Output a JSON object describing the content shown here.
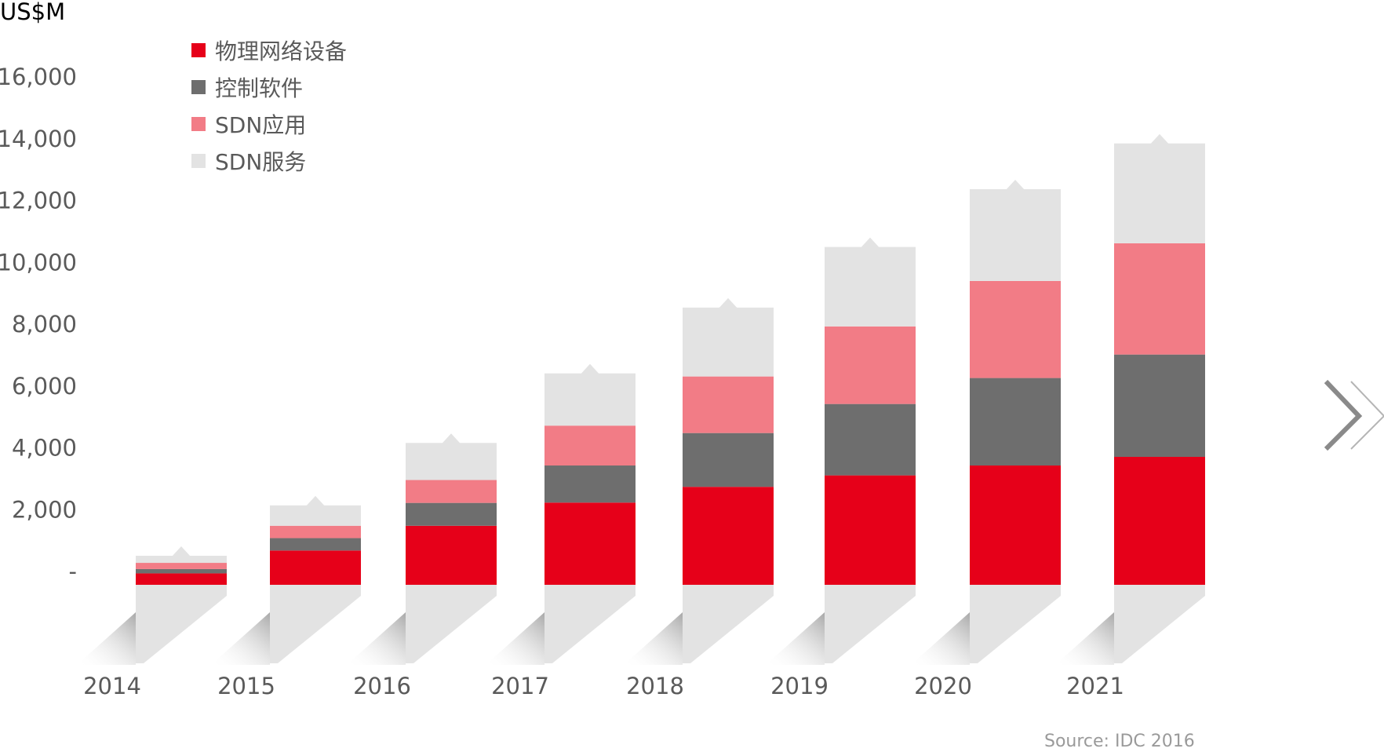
{
  "chart_data": {
    "type": "bar",
    "stacked": true,
    "ylabel": "US$M",
    "ylim": [
      0,
      16000
    ],
    "y_ticks": [
      "-",
      "2,000",
      "4,000",
      "6,000",
      "8,000",
      "10,000",
      "12,000",
      "14,000",
      "16,000"
    ],
    "y_tick_values": [
      0,
      2000,
      4000,
      6000,
      8000,
      10000,
      12000,
      14000,
      16000
    ],
    "grid": false,
    "legend_position": "top-left",
    "categories": [
      "2014",
      "2015",
      "2016",
      "2017",
      "2018",
      "2019",
      "2020",
      "2021"
    ],
    "series": [
      {
        "name": "物理网络设备",
        "color": "#e60019",
        "values": [
          370,
          1110,
          1910,
          2660,
          3170,
          3540,
          3860,
          4140
        ]
      },
      {
        "name": "控制软件",
        "color": "#6e6e6e",
        "values": [
          140,
          400,
          740,
          1200,
          1740,
          2310,
          2830,
          3310
        ]
      },
      {
        "name": "SDN应用",
        "color": "#f27c86",
        "values": [
          200,
          400,
          740,
          1290,
          1830,
          2510,
          3140,
          3600
        ]
      },
      {
        "name": "SDN服务",
        "color": "#e3e3e3",
        "values": [
          230,
          660,
          1200,
          1690,
          2230,
          2570,
          2970,
          3230
        ]
      }
    ],
    "source": "Source: IDC 2016"
  },
  "nav": {
    "next_icon": "chevron-right-icon"
  }
}
